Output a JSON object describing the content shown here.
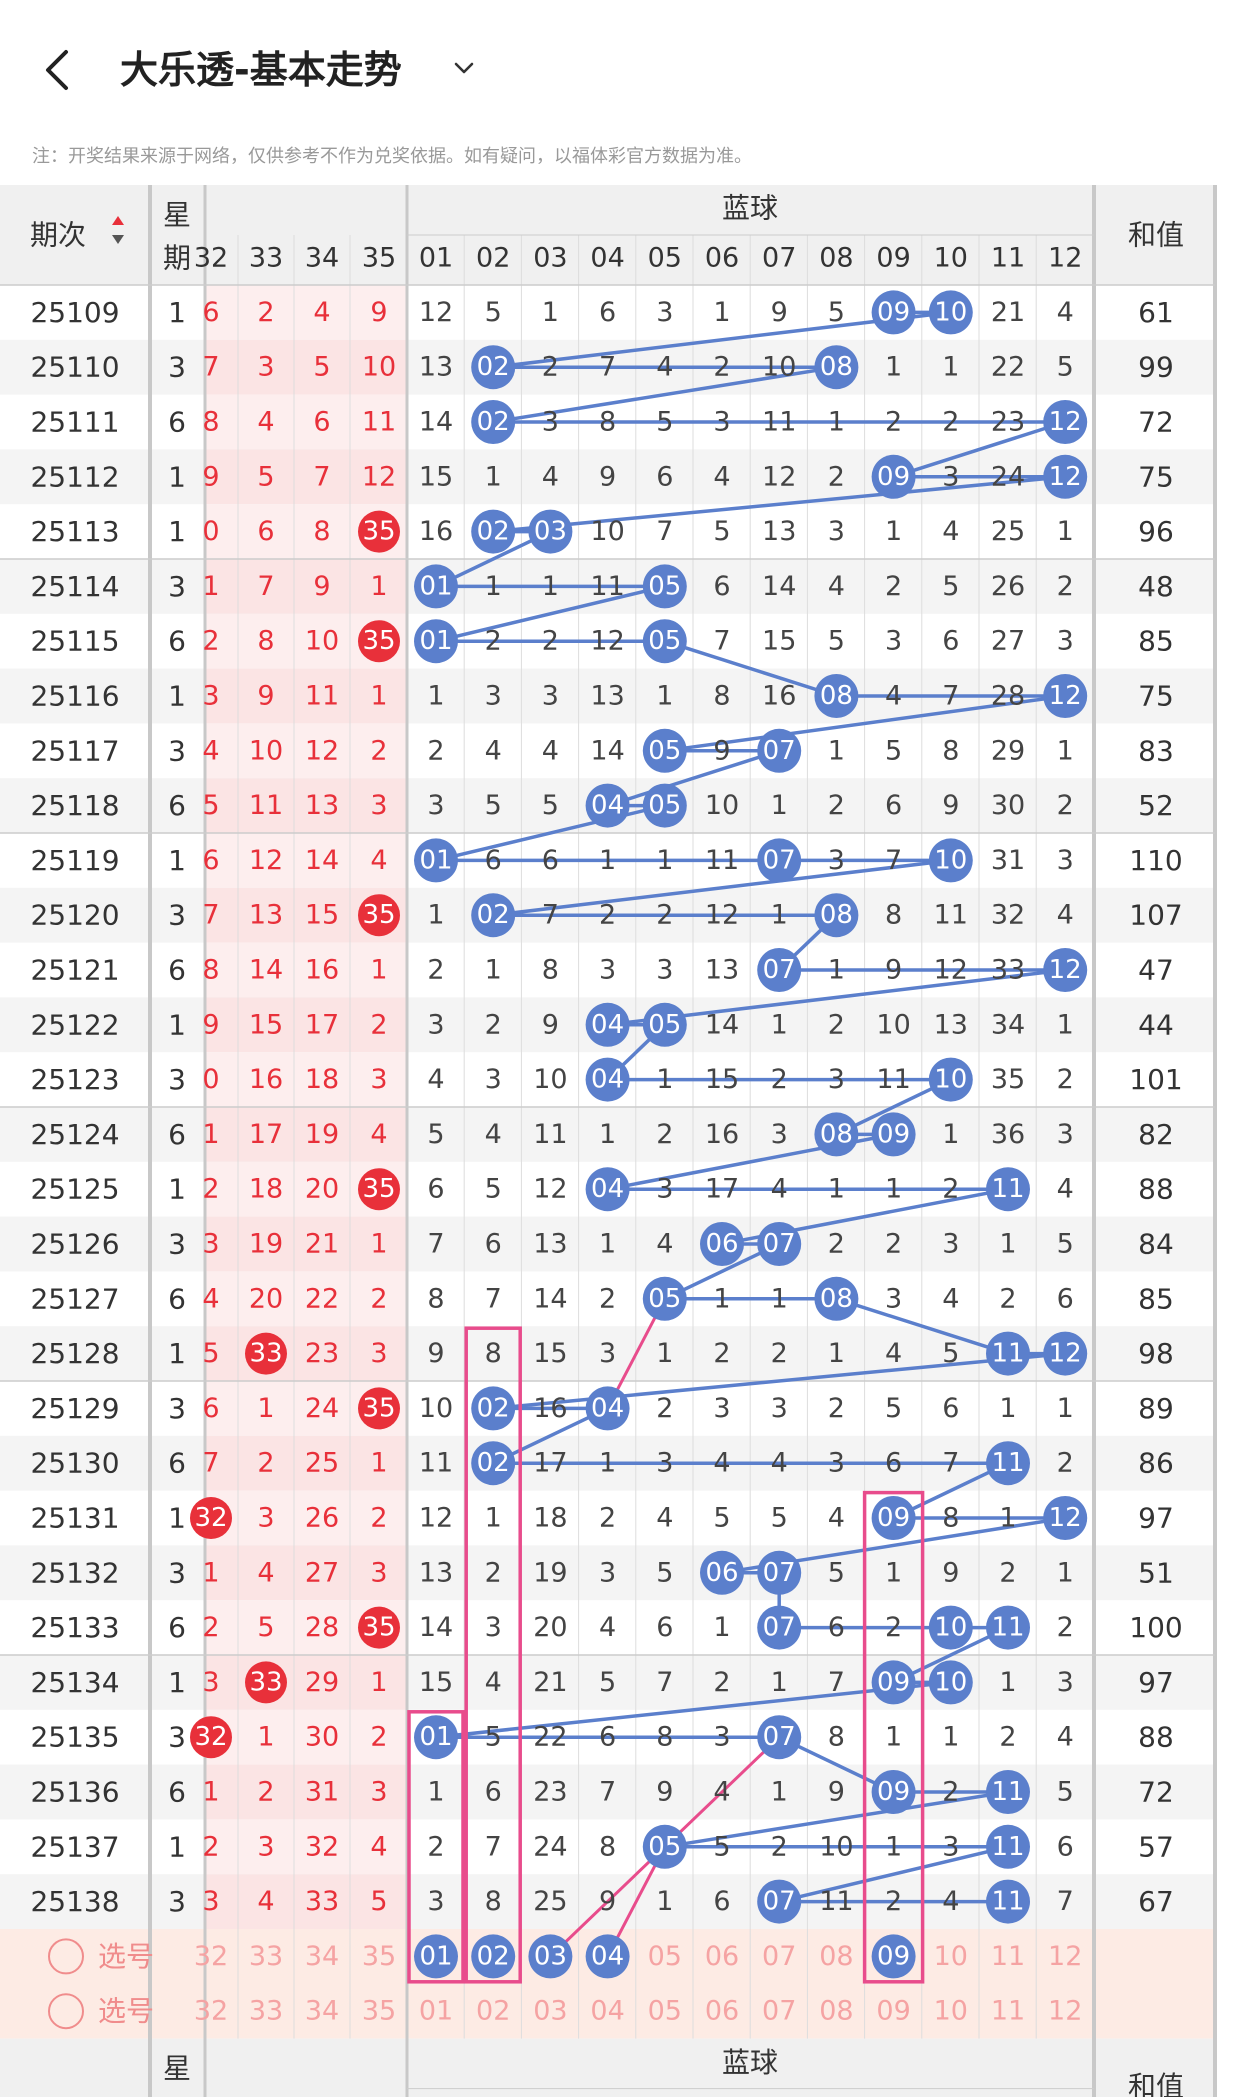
{
  "header": {
    "title": "大乐透-基本走势",
    "note": "注：开奖结果来源于网络，仅供参考不作为兑奖依据。如有疑问，以福体彩官方数据为准。"
  },
  "colors": {
    "red": "#e8303a",
    "blue": "#5b7fcc",
    "pink": "#e84c8c",
    "stripe": "#f4f4f4",
    "redstripe": "#fdeeee",
    "select_bg": "#fdebe4",
    "gridline": "#ddd"
  },
  "table": {
    "col_period": "期次",
    "col_weekday_1": "星",
    "col_weekday_2": "期",
    "col_blue_group": "蓝球",
    "col_sum": "和值",
    "red_headers": [
      "32",
      "33",
      "34",
      "35"
    ],
    "blue_headers": [
      "01",
      "02",
      "03",
      "04",
      "05",
      "06",
      "07",
      "08",
      "09",
      "10",
      "11",
      "12"
    ],
    "select_label": "选号",
    "select_row_reds": [
      "32",
      "33",
      "34",
      "35"
    ],
    "select_row_blues": [
      "01",
      "02",
      "03",
      "04",
      "05",
      "06",
      "07",
      "08",
      "09",
      "10",
      "11",
      "12"
    ],
    "selected_blues_row1": [
      "01",
      "02",
      "03",
      "04",
      "09"
    ],
    "rows": [
      {
        "period": "25109",
        "weekday": "1",
        "red": [
          "6",
          "2",
          "4",
          "9"
        ],
        "blue": [
          "12",
          "5",
          "1",
          "6",
          "3",
          "1",
          "9",
          "5",
          "09",
          "10",
          "21",
          "4"
        ],
        "sum": "61"
      },
      {
        "period": "25110",
        "weekday": "3",
        "red": [
          "7",
          "3",
          "5",
          "10"
        ],
        "blue": [
          "13",
          "02",
          "2",
          "7",
          "4",
          "2",
          "10",
          "08",
          "1",
          "1",
          "22",
          "5"
        ],
        "sum": "99"
      },
      {
        "period": "25111",
        "weekday": "6",
        "red": [
          "8",
          "4",
          "6",
          "11"
        ],
        "blue": [
          "14",
          "02",
          "3",
          "8",
          "5",
          "3",
          "11",
          "1",
          "2",
          "2",
          "23",
          "12"
        ],
        "sum": "72"
      },
      {
        "period": "25112",
        "weekday": "1",
        "red": [
          "9",
          "5",
          "7",
          "12"
        ],
        "blue": [
          "15",
          "1",
          "4",
          "9",
          "6",
          "4",
          "12",
          "2",
          "09",
          "3",
          "24",
          "12"
        ],
        "sum": "75"
      },
      {
        "period": "25113",
        "weekday": "1",
        "red": [
          "0",
          "6",
          "8",
          "35"
        ],
        "blue": [
          "16",
          "02",
          "03",
          "10",
          "7",
          "5",
          "13",
          "3",
          "1",
          "4",
          "25",
          "1"
        ],
        "sum": "96"
      },
      {
        "period": "25114",
        "weekday": "3",
        "red": [
          "1",
          "7",
          "9",
          "1"
        ],
        "blue": [
          "01",
          "1",
          "1",
          "11",
          "05",
          "6",
          "14",
          "4",
          "2",
          "5",
          "26",
          "2"
        ],
        "sum": "48"
      },
      {
        "period": "25115",
        "weekday": "6",
        "red": [
          "2",
          "8",
          "10",
          "35"
        ],
        "blue": [
          "01",
          "2",
          "2",
          "12",
          "05",
          "7",
          "15",
          "5",
          "3",
          "6",
          "27",
          "3"
        ],
        "sum": "85"
      },
      {
        "period": "25116",
        "weekday": "1",
        "red": [
          "3",
          "9",
          "11",
          "1"
        ],
        "blue": [
          "1",
          "3",
          "3",
          "13",
          "1",
          "8",
          "16",
          "08",
          "4",
          "7",
          "28",
          "12"
        ],
        "sum": "75"
      },
      {
        "period": "25117",
        "weekday": "3",
        "red": [
          "4",
          "10",
          "12",
          "2"
        ],
        "blue": [
          "2",
          "4",
          "4",
          "14",
          "05",
          "9",
          "07",
          "1",
          "5",
          "8",
          "29",
          "1"
        ],
        "sum": "83"
      },
      {
        "period": "25118",
        "weekday": "6",
        "red": [
          "5",
          "11",
          "13",
          "3"
        ],
        "blue": [
          "3",
          "5",
          "5",
          "04",
          "05",
          "10",
          "1",
          "2",
          "6",
          "9",
          "30",
          "2"
        ],
        "sum": "52"
      },
      {
        "period": "25119",
        "weekday": "1",
        "red": [
          "6",
          "12",
          "14",
          "4"
        ],
        "blue": [
          "01",
          "6",
          "6",
          "1",
          "1",
          "11",
          "07",
          "3",
          "7",
          "10",
          "31",
          "3"
        ],
        "sum": "110"
      },
      {
        "period": "25120",
        "weekday": "3",
        "red": [
          "7",
          "13",
          "15",
          "35"
        ],
        "blue": [
          "1",
          "02",
          "7",
          "2",
          "2",
          "12",
          "1",
          "08",
          "8",
          "11",
          "32",
          "4"
        ],
        "sum": "107"
      },
      {
        "period": "25121",
        "weekday": "6",
        "red": [
          "8",
          "14",
          "16",
          "1"
        ],
        "blue": [
          "2",
          "1",
          "8",
          "3",
          "3",
          "13",
          "07",
          "1",
          "9",
          "12",
          "33",
          "12"
        ],
        "sum": "47"
      },
      {
        "period": "25122",
        "weekday": "1",
        "red": [
          "9",
          "15",
          "17",
          "2"
        ],
        "blue": [
          "3",
          "2",
          "9",
          "04",
          "05",
          "14",
          "1",
          "2",
          "10",
          "13",
          "34",
          "1"
        ],
        "sum": "44"
      },
      {
        "period": "25123",
        "weekday": "3",
        "red": [
          "0",
          "16",
          "18",
          "3"
        ],
        "blue": [
          "4",
          "3",
          "10",
          "04",
          "1",
          "15",
          "2",
          "3",
          "11",
          "10",
          "35",
          "2"
        ],
        "sum": "101"
      },
      {
        "period": "25124",
        "weekday": "6",
        "red": [
          "1",
          "17",
          "19",
          "4"
        ],
        "blue": [
          "5",
          "4",
          "11",
          "1",
          "2",
          "16",
          "3",
          "08",
          "09",
          "1",
          "36",
          "3"
        ],
        "sum": "82"
      },
      {
        "period": "25125",
        "weekday": "1",
        "red": [
          "2",
          "18",
          "20",
          "35"
        ],
        "blue": [
          "6",
          "5",
          "12",
          "04",
          "3",
          "17",
          "4",
          "1",
          "1",
          "2",
          "11",
          "4"
        ],
        "sum": "88"
      },
      {
        "period": "25126",
        "weekday": "3",
        "red": [
          "3",
          "19",
          "21",
          "1"
        ],
        "blue": [
          "7",
          "6",
          "13",
          "1",
          "4",
          "06",
          "07",
          "2",
          "2",
          "3",
          "1",
          "5"
        ],
        "sum": "84"
      },
      {
        "period": "25127",
        "weekday": "6",
        "red": [
          "4",
          "20",
          "22",
          "2"
        ],
        "blue": [
          "8",
          "7",
          "14",
          "2",
          "05",
          "1",
          "1",
          "08",
          "3",
          "4",
          "2",
          "6"
        ],
        "sum": "85"
      },
      {
        "period": "25128",
        "weekday": "1",
        "red": [
          "5",
          "33",
          "23",
          "3"
        ],
        "blue": [
          "9",
          "8",
          "15",
          "3",
          "1",
          "2",
          "2",
          "1",
          "4",
          "5",
          "11",
          "12"
        ],
        "sum": "98"
      },
      {
        "period": "25129",
        "weekday": "3",
        "red": [
          "6",
          "1",
          "24",
          "35"
        ],
        "blue": [
          "10",
          "02",
          "16",
          "04",
          "2",
          "3",
          "3",
          "2",
          "5",
          "6",
          "1",
          "1"
        ],
        "sum": "89"
      },
      {
        "period": "25130",
        "weekday": "6",
        "red": [
          "7",
          "2",
          "25",
          "1"
        ],
        "blue": [
          "11",
          "02",
          "17",
          "1",
          "3",
          "4",
          "4",
          "3",
          "6",
          "7",
          "11",
          "2"
        ],
        "sum": "86"
      },
      {
        "period": "25131",
        "weekday": "1",
        "red": [
          "32",
          "3",
          "26",
          "2"
        ],
        "blue": [
          "12",
          "1",
          "18",
          "2",
          "4",
          "5",
          "5",
          "4",
          "09",
          "8",
          "1",
          "12"
        ],
        "sum": "97"
      },
      {
        "period": "25132",
        "weekday": "3",
        "red": [
          "1",
          "4",
          "27",
          "3"
        ],
        "blue": [
          "13",
          "2",
          "19",
          "3",
          "5",
          "06",
          "07",
          "5",
          "1",
          "9",
          "2",
          "1"
        ],
        "sum": "51"
      },
      {
        "period": "25133",
        "weekday": "6",
        "red": [
          "2",
          "5",
          "28",
          "35"
        ],
        "blue": [
          "14",
          "3",
          "20",
          "4",
          "6",
          "1",
          "07",
          "6",
          "2",
          "10",
          "11",
          "2"
        ],
        "sum": "100"
      },
      {
        "period": "25134",
        "weekday": "1",
        "red": [
          "3",
          "33",
          "29",
          "1"
        ],
        "blue": [
          "15",
          "4",
          "21",
          "5",
          "7",
          "2",
          "1",
          "7",
          "09",
          "10",
          "1",
          "3"
        ],
        "sum": "97"
      },
      {
        "period": "25135",
        "weekday": "3",
        "red": [
          "32",
          "1",
          "30",
          "2"
        ],
        "blue": [
          "01",
          "5",
          "22",
          "6",
          "8",
          "3",
          "07",
          "8",
          "1",
          "1",
          "2",
          "4"
        ],
        "sum": "88"
      },
      {
        "period": "25136",
        "weekday": "6",
        "red": [
          "1",
          "2",
          "31",
          "3"
        ],
        "blue": [
          "1",
          "6",
          "23",
          "7",
          "9",
          "4",
          "1",
          "9",
          "09",
          "2",
          "11",
          "5"
        ],
        "sum": "72"
      },
      {
        "period": "25137",
        "weekday": "1",
        "red": [
          "2",
          "3",
          "32",
          "4"
        ],
        "blue": [
          "2",
          "7",
          "24",
          "8",
          "05",
          "5",
          "2",
          "10",
          "1",
          "3",
          "11",
          "6"
        ],
        "sum": "57"
      },
      {
        "period": "25138",
        "weekday": "3",
        "red": [
          "3",
          "4",
          "33",
          "5"
        ],
        "blue": [
          "3",
          "8",
          "25",
          "9",
          "1",
          "6",
          "07",
          "11",
          "2",
          "4",
          "11",
          "7"
        ],
        "sum": "67"
      }
    ],
    "footer_weekday_1": "星",
    "footer_blue_group": "蓝球",
    "footer_sum": "和值"
  }
}
